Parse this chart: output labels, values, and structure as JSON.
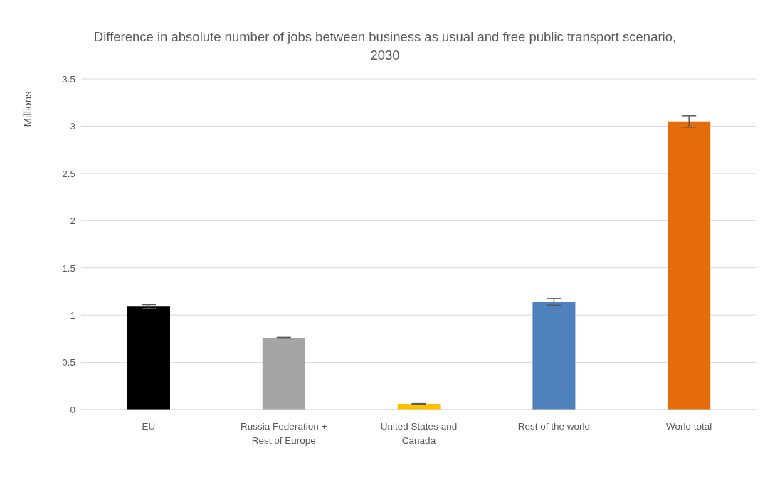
{
  "chart_data": {
    "type": "bar",
    "title": "Difference in absolute number of jobs between business as usual and free public transport scenario, 2030",
    "ylabel": "Millions",
    "categories": [
      "EU",
      "Russia Federation + Rest of Europe",
      "United States and Canada",
      "Rest of the world",
      "World total"
    ],
    "values": [
      1.09,
      0.76,
      0.06,
      1.14,
      3.05
    ],
    "colors": [
      "#000000",
      "#a5a5a5",
      "#ffc000",
      "#4f81bd",
      "#e46c0a"
    ],
    "errors": [
      0.02,
      0.005,
      0.003,
      0.035,
      0.06
    ],
    "ylim": [
      0,
      3.5
    ],
    "yticks": [
      0,
      0.5,
      1,
      1.5,
      2,
      2.5,
      3,
      3.5
    ],
    "grid": "y",
    "legend": false
  }
}
